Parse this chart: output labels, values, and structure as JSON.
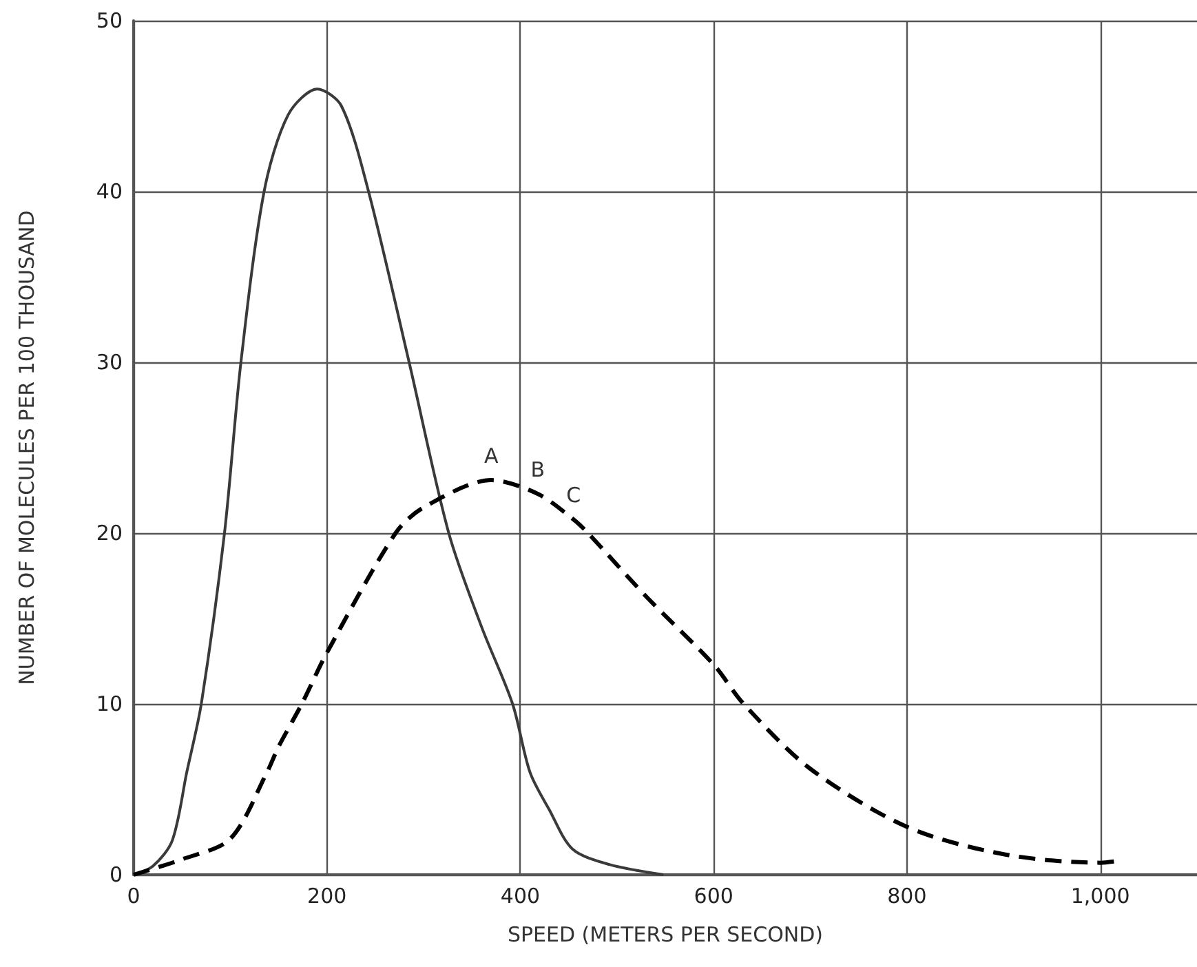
{
  "chart_data": {
    "type": "line",
    "xlabel": "SPEED (METERS PER SECOND)",
    "ylabel": "NUMBER OF MOLECULES PER 100 THOUSAND",
    "series": [
      {
        "color": "#3a3a3a",
        "line_style": "solid",
        "x": [
          0,
          20,
          40,
          55,
          70,
          94,
          111,
          135,
          160,
          190,
          215,
          243,
          285,
          326,
          360,
          392,
          410,
          430,
          454,
          492,
          548
        ],
        "values": [
          0,
          0.5,
          2,
          6,
          10,
          20,
          30,
          40,
          44.5,
          46,
          45,
          40,
          30,
          20,
          14.5,
          10,
          6,
          3.8,
          1.5,
          0.6,
          0
        ]
      },
      {
        "color": "#000000",
        "line_style": "dashed",
        "x": [
          0,
          50,
          100,
          138,
          150,
          174,
          200,
          271,
          300,
          370,
          418,
          455,
          470,
          530,
          600,
          631,
          700,
          800,
          900,
          1000,
          1017
        ],
        "values": [
          0,
          0.9,
          2.1,
          6,
          7.5,
          10,
          13,
          20,
          21.5,
          23.1,
          22.3,
          20.8,
          20,
          16.3,
          12.3,
          10,
          6.2,
          2.8,
          1.2,
          0.7,
          0.8
        ]
      }
    ],
    "annotations": [
      {
        "text": "A",
        "x": 370,
        "y": 23.1
      },
      {
        "text": "B",
        "x": 418,
        "y": 22.3
      },
      {
        "text": "C",
        "x": 455,
        "y": 20.8
      }
    ],
    "xlim": [
      0,
      1100
    ],
    "xticks": [
      0,
      200,
      400,
      600,
      800,
      {
        "value": 1000,
        "label": "1,000"
      }
    ],
    "ylim": [
      0,
      50
    ],
    "yticks": [
      0,
      10,
      20,
      30,
      40,
      50
    ],
    "grid": true,
    "marker": "none"
  }
}
